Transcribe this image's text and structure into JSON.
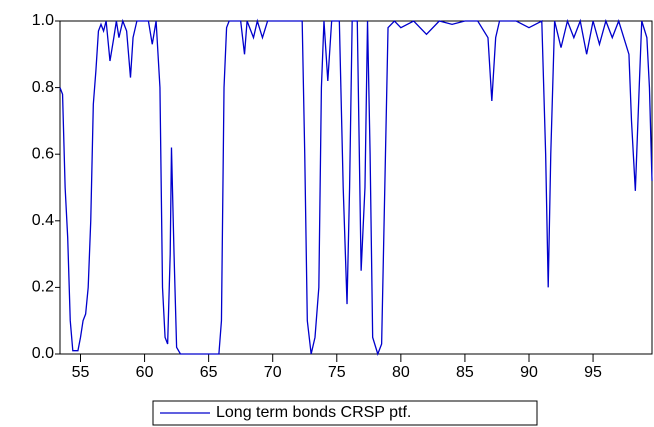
{
  "chart_data": {
    "type": "line",
    "x": [
      53.4,
      53.6,
      53.8,
      54.0,
      54.2,
      54.4,
      54.8,
      55.0,
      55.2,
      55.4,
      55.6,
      55.8,
      56.0,
      56.2,
      56.4,
      56.6,
      56.8,
      57.0,
      57.3,
      57.6,
      57.8,
      58.0,
      58.3,
      58.6,
      58.9,
      59.1,
      59.4,
      60.3,
      60.6,
      60.9,
      61.2,
      61.4,
      61.6,
      61.8,
      62.0,
      62.1,
      62.3,
      62.5,
      62.8,
      65.8,
      66.0,
      66.2,
      66.4,
      66.6,
      67.5,
      67.8,
      68.0,
      68.5,
      68.8,
      69.2,
      69.6,
      72.3,
      72.5,
      72.7,
      73.0,
      73.3,
      73.6,
      73.8,
      74.0,
      74.3,
      74.6,
      75.2,
      75.5,
      75.8,
      76.0,
      76.2,
      76.6,
      76.9,
      77.2,
      77.4,
      77.6,
      77.8,
      78.2,
      78.5,
      78.8,
      79.0,
      79.5,
      80,
      81,
      82,
      83,
      84,
      85,
      86,
      86.8,
      87.1,
      87.4,
      87.7,
      89,
      90,
      91,
      91.3,
      91.5,
      91.7,
      92,
      92.5,
      93,
      93.5,
      94,
      94.5,
      95,
      95.5,
      96,
      96.5,
      97,
      97.8,
      98,
      98.3,
      98.6,
      98.8,
      99.2,
      99.4,
      99.6
    ],
    "series": [
      {
        "name": "Long term bonds CRSP ptf.",
        "color": "#0000cc",
        "values": [
          0.8,
          0.78,
          0.5,
          0.35,
          0.1,
          0.01,
          0.01,
          0.05,
          0.1,
          0.12,
          0.2,
          0.4,
          0.75,
          0.85,
          0.97,
          0.99,
          0.97,
          1.0,
          0.88,
          0.95,
          1.0,
          0.95,
          1.0,
          0.97,
          0.83,
          0.95,
          1.0,
          1.0,
          0.93,
          1.0,
          0.8,
          0.2,
          0.05,
          0.03,
          0.3,
          0.62,
          0.3,
          0.02,
          0.0,
          0.0,
          0.1,
          0.8,
          0.98,
          1.0,
          1.0,
          0.9,
          1.0,
          0.95,
          1.0,
          0.95,
          1.0,
          1.0,
          0.6,
          0.1,
          0.0,
          0.05,
          0.2,
          0.8,
          1.0,
          0.82,
          1.0,
          1.0,
          0.5,
          0.15,
          0.5,
          1.0,
          1.0,
          0.25,
          0.5,
          1.0,
          0.6,
          0.05,
          0.0,
          0.03,
          0.6,
          0.98,
          1.0,
          0.98,
          1.0,
          0.96,
          1.0,
          0.99,
          1.0,
          1.0,
          0.95,
          0.76,
          0.95,
          1.0,
          1.0,
          0.98,
          1.0,
          0.6,
          0.2,
          0.6,
          1.0,
          0.92,
          1.0,
          0.95,
          1.0,
          0.9,
          1.0,
          0.93,
          1.0,
          0.95,
          1.0,
          0.9,
          0.7,
          0.49,
          0.8,
          1.0,
          0.95,
          0.8,
          0.52
        ]
      }
    ],
    "xlim": [
      53.4,
      99.6
    ],
    "xticks": [
      55,
      60,
      65,
      70,
      75,
      80,
      85,
      90,
      95
    ],
    "ylim": [
      0,
      1
    ],
    "yticks": [
      {
        "value": 0,
        "label": "0.0"
      },
      0.2,
      0.4,
      0.6,
      0.8,
      {
        "value": 1,
        "label": "1.0"
      }
    ]
  }
}
